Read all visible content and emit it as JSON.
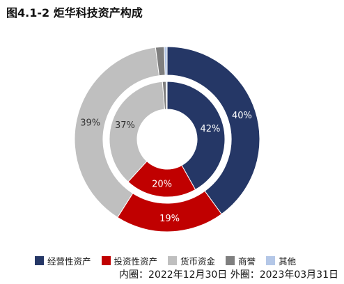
{
  "title": "图4.1-2 炬华科技资产构成",
  "footnote": "内圈：2022年12月30日 外圈：2023年03月31日",
  "chart_data": {
    "type": "donut",
    "title": "图4.1-2 炬华科技资产构成",
    "categories": [
      "经营性资产",
      "投资性资产",
      "货币资金",
      "商誉",
      "其他"
    ],
    "colors": [
      "#253766",
      "#c00000",
      "#bfbfbf",
      "#7f7f7f",
      "#b4c7e7"
    ],
    "series": [
      {
        "name": "内圈：2022年12月30日",
        "ring": "inner",
        "values": [
          42,
          20,
          37,
          1,
          0.3
        ],
        "labels": [
          "42%",
          "20%",
          "37%",
          "",
          ""
        ]
      },
      {
        "name": "外圈：2023年03月31日",
        "ring": "outer",
        "values": [
          40,
          19,
          39,
          1.5,
          0.5
        ],
        "labels": [
          "40%",
          "19%",
          "39%",
          "",
          ""
        ]
      }
    ],
    "legend_position": "bottom"
  }
}
